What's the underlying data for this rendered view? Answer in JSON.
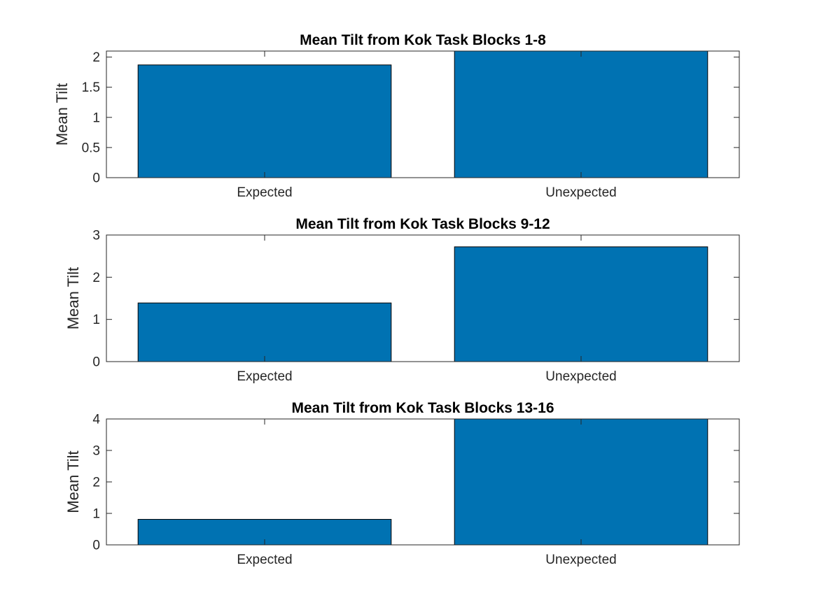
{
  "chart_data": [
    {
      "type": "bar",
      "title": "Mean Tilt from Kok Task Blocks 1-8",
      "ylabel": "Mean Tilt",
      "xlabel": "",
      "categories": [
        "Expected",
        "Unexpected"
      ],
      "values": [
        1.87,
        2.1
      ],
      "ylim": [
        0,
        2.1
      ],
      "yticks": [
        0,
        0.5,
        1,
        1.5,
        2
      ],
      "ytick_labels": [
        "0",
        "0.5",
        "1",
        "1.5",
        "2"
      ],
      "grid": false,
      "bar_color": "#0072B2"
    },
    {
      "type": "bar",
      "title": "Mean Tilt from Kok Task Blocks 9-12",
      "ylabel": "Mean Tilt",
      "xlabel": "",
      "categories": [
        "Expected",
        "Unexpected"
      ],
      "values": [
        1.39,
        2.72
      ],
      "ylim": [
        0,
        3
      ],
      "yticks": [
        0,
        1,
        2,
        3
      ],
      "ytick_labels": [
        "0",
        "1",
        "2",
        "3"
      ],
      "grid": false,
      "bar_color": "#0072B2"
    },
    {
      "type": "bar",
      "title": "Mean Tilt from Kok Task Blocks 13-16",
      "ylabel": "Mean Tilt",
      "xlabel": "",
      "categories": [
        "Expected",
        "Unexpected"
      ],
      "values": [
        0.81,
        4.0
      ],
      "ylim": [
        0,
        4
      ],
      "yticks": [
        0,
        1,
        2,
        3,
        4
      ],
      "ytick_labels": [
        "0",
        "1",
        "2",
        "3",
        "4"
      ],
      "grid": false,
      "bar_color": "#0072B2"
    }
  ]
}
